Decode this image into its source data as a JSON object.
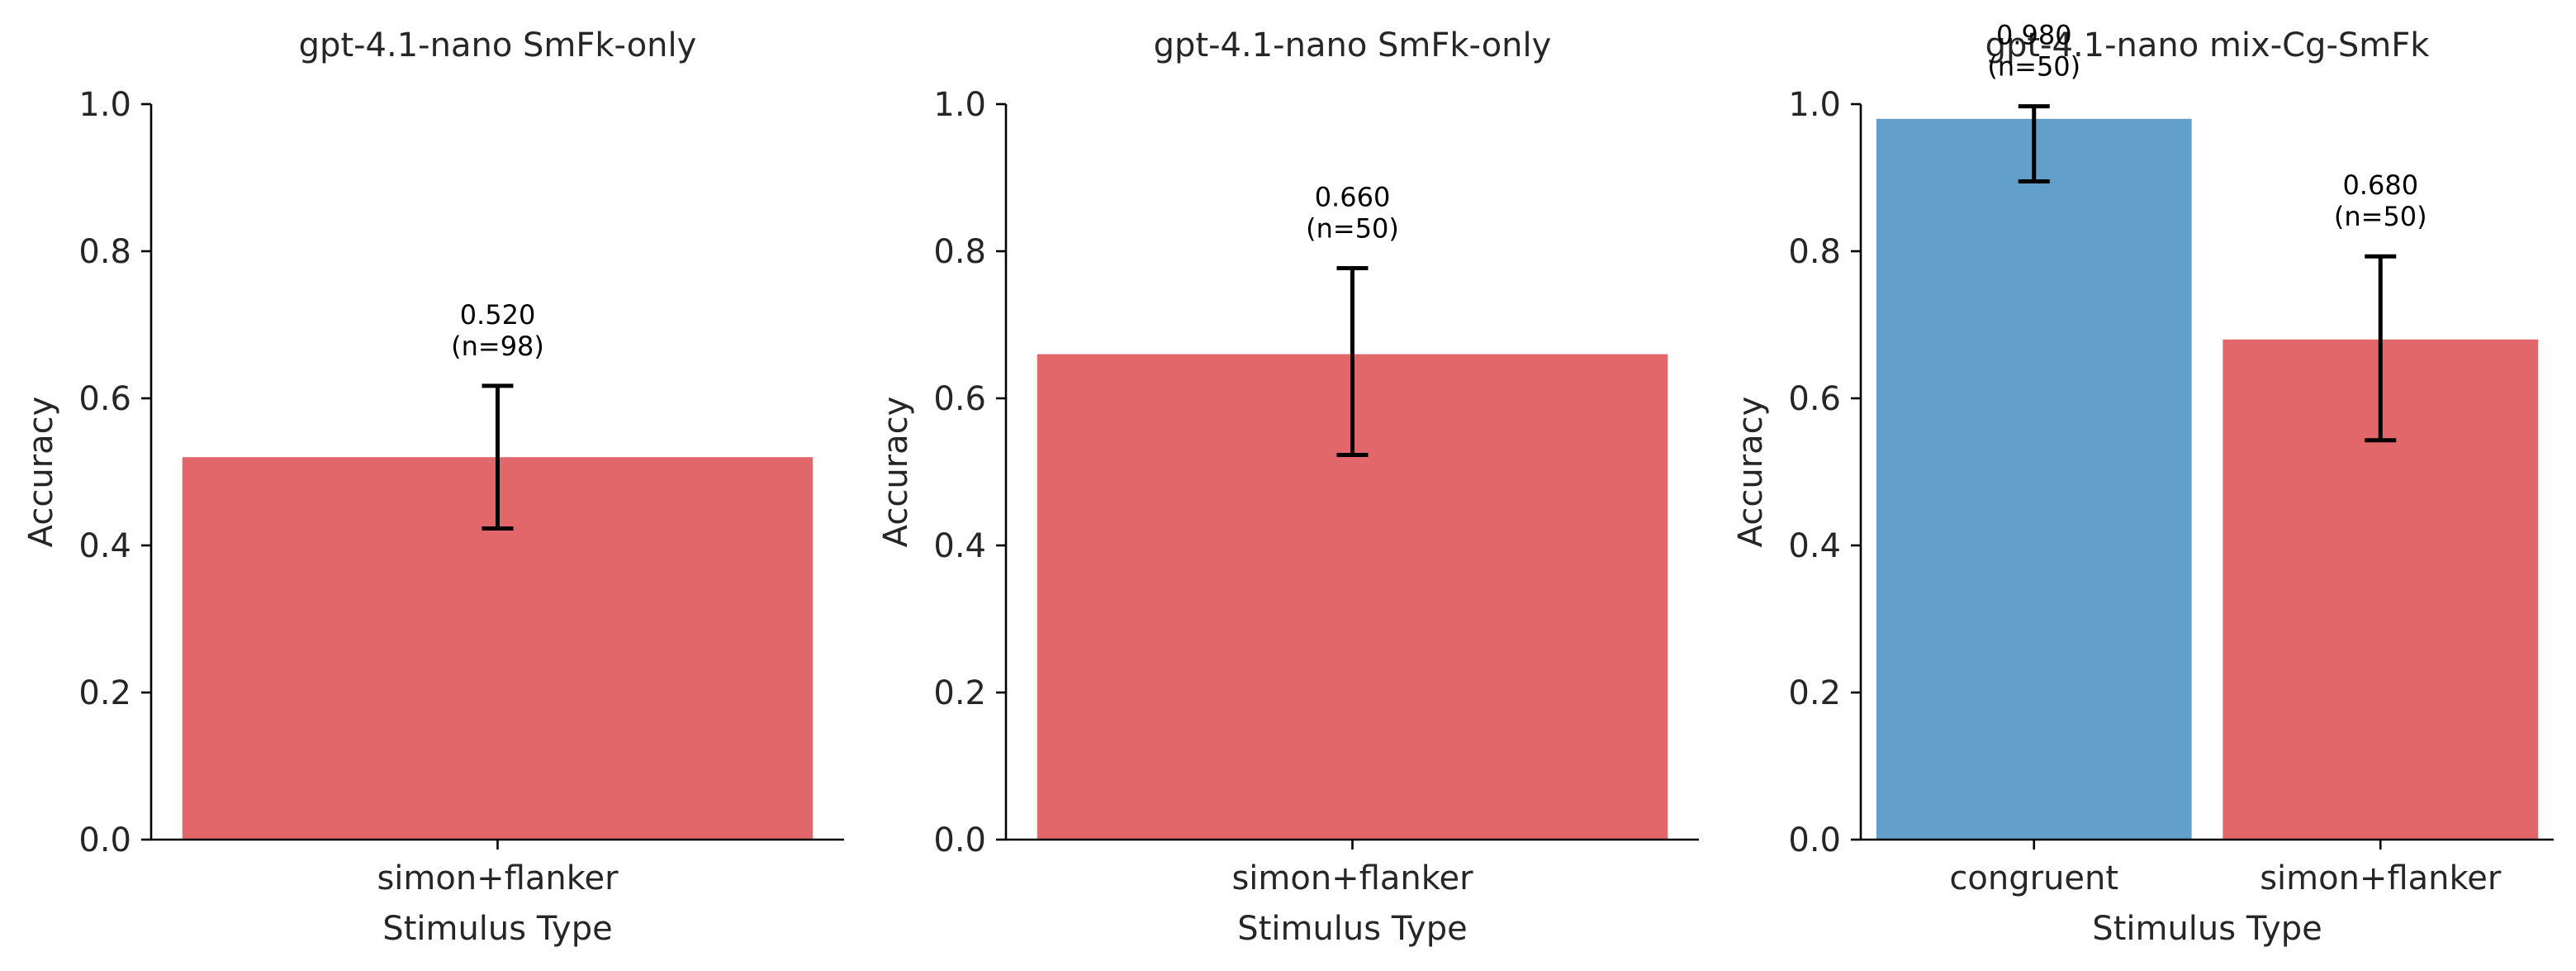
{
  "chart_data": [
    {
      "type": "bar",
      "title": "gpt-4.1-nano SmFk-only",
      "xlabel": "Stimulus Type",
      "ylabel": "Accuracy",
      "ylim": [
        0,
        1
      ],
      "yticks": [
        "0.0",
        "0.2",
        "0.4",
        "0.6",
        "0.8",
        "1.0"
      ],
      "categories": [
        "simon+flanker"
      ],
      "values": [
        0.52
      ],
      "error_low": [
        0.423
      ],
      "error_high": [
        0.617
      ],
      "value_labels": [
        "0.520"
      ],
      "n_labels": [
        "(n=98)"
      ],
      "colors": [
        "#e1676a"
      ],
      "grid": false
    },
    {
      "type": "bar",
      "title": "gpt-4.1-nano SmFk-only",
      "xlabel": "Stimulus Type",
      "ylabel": "Accuracy",
      "ylim": [
        0,
        1
      ],
      "yticks": [
        "0.0",
        "0.2",
        "0.4",
        "0.6",
        "0.8",
        "1.0"
      ],
      "categories": [
        "simon+flanker"
      ],
      "values": [
        0.66
      ],
      "error_low": [
        0.523
      ],
      "error_high": [
        0.777
      ],
      "value_labels": [
        "0.660"
      ],
      "n_labels": [
        "(n=50)"
      ],
      "colors": [
        "#e1676a"
      ],
      "grid": false
    },
    {
      "type": "bar",
      "title": "gpt-4.1-nano mix-Cg-SmFk",
      "xlabel": "Stimulus Type",
      "ylabel": "Accuracy",
      "ylim": [
        0,
        1
      ],
      "yticks": [
        "0.0",
        "0.2",
        "0.4",
        "0.6",
        "0.8",
        "1.0"
      ],
      "categories": [
        "congruent",
        "simon+flanker"
      ],
      "values": [
        0.98,
        0.68
      ],
      "error_low": [
        0.895,
        0.543
      ],
      "error_high": [
        0.997,
        0.793
      ],
      "value_labels": [
        "0.980",
        "0.680"
      ],
      "n_labels": [
        "(n=50)",
        "(n=50)"
      ],
      "colors": [
        "#62a0cb",
        "#e1676a"
      ],
      "grid": false
    }
  ]
}
